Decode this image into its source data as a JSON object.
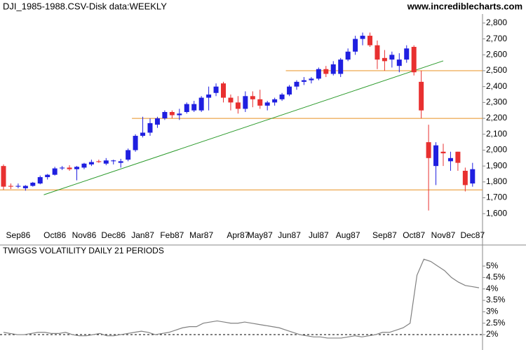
{
  "header": {
    "title": "DJI_1985-1988.CSV-Disk data:WEEKLY",
    "site": "www.incrediblecharts.com"
  },
  "chart_data": [
    {
      "type": "candlestick",
      "up_color": "#1f1fe0",
      "down_color": "#e83030",
      "categories": [
        null,
        null,
        "Sep86",
        null,
        null,
        null,
        null,
        "Oct86",
        null,
        null,
        null,
        "Nov86",
        null,
        null,
        null,
        "Dec86",
        null,
        null,
        null,
        "Jan87",
        null,
        null,
        null,
        "Feb87",
        null,
        null,
        null,
        "Mar87",
        null,
        null,
        null,
        null,
        "Apr87",
        null,
        null,
        "May87",
        null,
        null,
        null,
        "Jun87",
        null,
        null,
        null,
        "Jul87",
        null,
        null,
        null,
        "Aug87",
        null,
        null,
        null,
        null,
        "Sep87",
        null,
        null,
        null,
        "Oct87",
        null,
        null,
        null,
        "Nov87",
        null,
        null,
        null,
        "Dec87"
      ],
      "open": [
        1900,
        1775,
        1770,
        1760,
        1775,
        1790,
        1830,
        1845,
        1885,
        1890,
        1880,
        1890,
        1910,
        1930,
        1915,
        1930,
        1920,
        1940,
        2000,
        2090,
        2110,
        2160,
        2200,
        2240,
        2220,
        2240,
        2250,
        2250,
        2330,
        2360,
        2420,
        2330,
        2300,
        2260,
        2340,
        2320,
        2280,
        2300,
        2320,
        2350,
        2400,
        2430,
        2440,
        2450,
        2510,
        2480,
        2480,
        2570,
        2620,
        2700,
        2720,
        2660,
        2580,
        2570,
        2530,
        2570,
        2650,
        2430,
        2050,
        1900,
        1990,
        1930,
        1990,
        1870,
        1790
      ],
      "high": [
        1910,
        1790,
        1790,
        1780,
        1800,
        1840,
        1850,
        1895,
        1900,
        1905,
        1900,
        1920,
        1940,
        1940,
        1950,
        1940,
        1945,
        2010,
        2100,
        2210,
        2200,
        2210,
        2250,
        2250,
        2260,
        2300,
        2310,
        2340,
        2400,
        2420,
        2430,
        2350,
        2340,
        2370,
        2370,
        2380,
        2310,
        2330,
        2360,
        2410,
        2440,
        2460,
        2460,
        2520,
        2530,
        2560,
        2580,
        2640,
        2720,
        2740,
        2740,
        2690,
        2630,
        2620,
        2610,
        2660,
        2660,
        2500,
        2160,
        2050,
        2040,
        1990,
        1990,
        1890,
        1920
      ],
      "low": [
        1750,
        1755,
        1760,
        1745,
        1770,
        1785,
        1815,
        1840,
        1875,
        1870,
        1810,
        1880,
        1900,
        1920,
        1905,
        1910,
        1890,
        1930,
        1990,
        2080,
        2090,
        2140,
        2190,
        2200,
        2190,
        2230,
        2240,
        2240,
        2250,
        2340,
        2300,
        2250,
        2230,
        2240,
        2270,
        2260,
        2250,
        2280,
        2310,
        2340,
        2380,
        2410,
        2420,
        2440,
        2460,
        2470,
        2460,
        2560,
        2600,
        2660,
        2650,
        2510,
        2500,
        2520,
        2490,
        2550,
        2470,
        2200,
        1620,
        1780,
        1900,
        1870,
        1870,
        1740,
        1770
      ],
      "close": [
        1770,
        1770,
        1775,
        1775,
        1795,
        1830,
        1845,
        1885,
        1890,
        1880,
        1895,
        1915,
        1925,
        1925,
        1935,
        1935,
        1930,
        2000,
        2090,
        2110,
        2170,
        2200,
        2240,
        2220,
        2230,
        2290,
        2290,
        2330,
        2350,
        2400,
        2330,
        2300,
        2260,
        2340,
        2320,
        2280,
        2300,
        2320,
        2350,
        2400,
        2430,
        2440,
        2450,
        2510,
        2480,
        2540,
        2570,
        2620,
        2700,
        2720,
        2660,
        2570,
        2560,
        2600,
        2570,
        2640,
        2490,
        2250,
        1950,
        2030,
        1980,
        1950,
        1920,
        1780,
        1880
      ],
      "hlines": [
        {
          "value": 1750,
          "start": 0,
          "color": "#e89020"
        },
        {
          "value": 2200,
          "start": 18,
          "color": "#e89020"
        },
        {
          "value": 2500,
          "start": 39,
          "color": "#e89020"
        }
      ],
      "trendline": {
        "start": 5.5,
        "start_value": 1719,
        "end": 60,
        "end_value": 2562,
        "color": "#2a9a2a"
      },
      "ylim": [
        1535,
        2945
      ],
      "yticks": [
        {
          "value": 1600,
          "label": "1,600"
        },
        {
          "value": 1700,
          "label": "1,700"
        },
        {
          "value": 1800,
          "label": "1,800"
        },
        {
          "value": 1900,
          "label": "1,900"
        },
        {
          "value": 2000,
          "label": "2,000"
        },
        {
          "value": 2100,
          "label": "2,100"
        },
        {
          "value": 2200,
          "label": "2,200"
        },
        {
          "value": 2300,
          "label": "2,300"
        },
        {
          "value": 2400,
          "label": "2,400"
        },
        {
          "value": 2500,
          "label": "2,500"
        },
        {
          "value": 2600,
          "label": "2,600"
        },
        {
          "value": 2700,
          "label": "2,700"
        },
        {
          "value": 2800,
          "label": "2,800"
        }
      ]
    },
    {
      "type": "line",
      "title": "TWIGGS VOLATILITY DAILY 21 PERIODS",
      "color": "#808080",
      "values": [
        2.1,
        2.05,
        2.0,
        2.0,
        2.05,
        2.1,
        2.1,
        2.05,
        2.05,
        2.1,
        2.0,
        1.95,
        1.95,
        2.0,
        2.05,
        1.95,
        1.95,
        2.0,
        2.05,
        2.1,
        2.15,
        2.1,
        2.0,
        2.05,
        2.1,
        2.2,
        2.3,
        2.35,
        2.35,
        2.5,
        2.55,
        2.6,
        2.55,
        2.5,
        2.5,
        2.55,
        2.5,
        2.45,
        2.4,
        2.35,
        2.3,
        2.2,
        2.1,
        2.0,
        1.95,
        1.9,
        1.9,
        1.85,
        1.85,
        1.85,
        1.9,
        1.95,
        1.9,
        1.95,
        2.0,
        2.1,
        2.1,
        2.2,
        2.3,
        2.5,
        4.6,
        5.3,
        5.2,
        5.0,
        4.8,
        4.5,
        4.3,
        4.15,
        4.1,
        4.05
      ],
      "reference_line": 2,
      "ylim": [
        1.45,
        5.86
      ],
      "yticks": [
        {
          "value": 2,
          "label": "2%"
        },
        {
          "value": 2.5,
          "label": "2.5%"
        },
        {
          "value": 3,
          "label": "3%"
        },
        {
          "value": 3.5,
          "label": "3.5%"
        },
        {
          "value": 4,
          "label": "4%"
        },
        {
          "value": 4.5,
          "label": "4.5%"
        },
        {
          "value": 5,
          "label": "5%"
        }
      ]
    }
  ]
}
